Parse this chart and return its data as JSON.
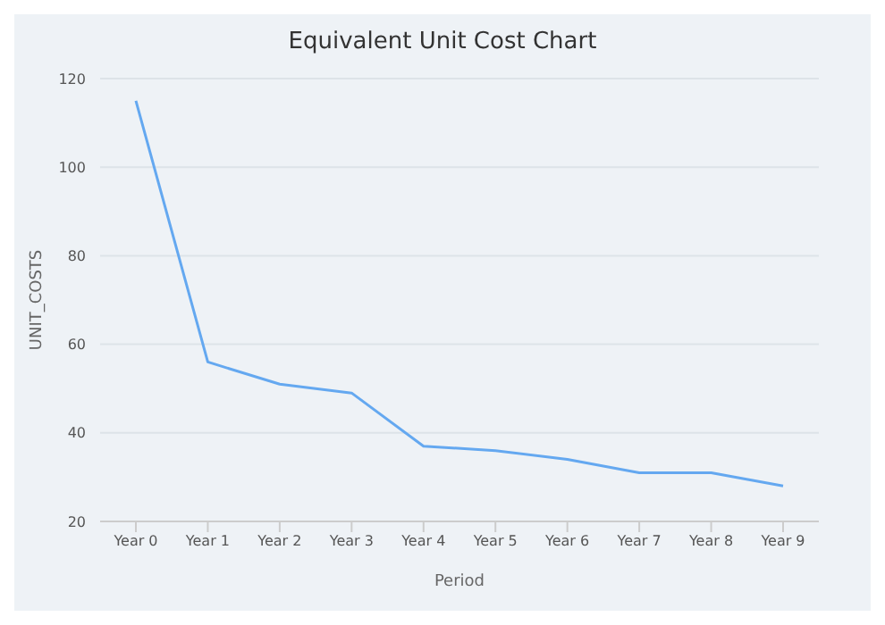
{
  "chart_data": {
    "type": "line",
    "title": "Equivalent Unit Cost Chart",
    "xlabel": "Period",
    "ylabel": "UNIT_COSTS",
    "categories": [
      "Year 0",
      "Year 1",
      "Year 2",
      "Year 3",
      "Year 4",
      "Year 5",
      "Year 6",
      "Year 7",
      "Year 8",
      "Year 9"
    ],
    "series": [
      {
        "color": "#64a8f0",
        "values": [
          115,
          56,
          51,
          49,
          37,
          36,
          34,
          31,
          31,
          28
        ]
      }
    ],
    "ylim": [
      20,
      120
    ],
    "yticks": [
      20,
      40,
      60,
      80,
      100,
      120
    ],
    "grid": "y",
    "marker": "none",
    "line_style": "solid"
  }
}
